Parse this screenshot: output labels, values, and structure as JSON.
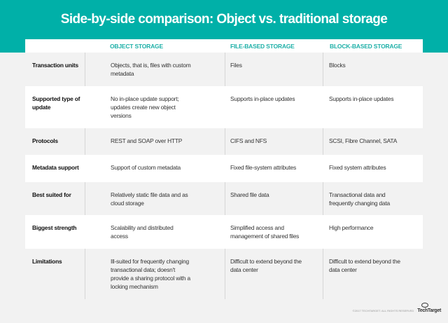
{
  "title": "Side-by-side comparison: Object vs. traditional storage",
  "columns": [
    "OBJECT STORAGE",
    "FILE-BASED STORAGE",
    "BLOCK-BASED STORAGE"
  ],
  "rows": [
    {
      "label": "Transaction units",
      "object": "Objects, that is, files with custom metadata",
      "file": "Files",
      "block": "Blocks"
    },
    {
      "label": "Supported type of update",
      "object": "No in-place update support; updates create new object versions",
      "file": "Supports in-place updates",
      "block": "Supports in-place updates"
    },
    {
      "label": "Protocols",
      "object": "REST and SOAP over HTTP",
      "file": "CIFS and NFS",
      "block": "SCSI, Fibre Channel, SATA"
    },
    {
      "label": "Metadata support",
      "object": "Support of custom metadata",
      "file": "Fixed file-system attributes",
      "block": "Fixed system attributes"
    },
    {
      "label": "Best suited for",
      "object": "Relatively static file data and as cloud storage",
      "file": "Shared file data",
      "block": "Transactional data and frequently changing data"
    },
    {
      "label": "Biggest strength",
      "object": "Scalability and distributed access",
      "file": "Simplified access and management of shared files",
      "block": "High performance"
    },
    {
      "label": "Limitations",
      "object": "Ill-suited for frequently changing transactional data; doesn't provide a sharing protocol with a locking mechanism",
      "file": "Difficult to extend beyond the data center",
      "block": "Difficult to extend beyond the data center"
    }
  ],
  "footer": {
    "copyright": "©2017 TECHTARGET. ALL RIGHTS RESERVED",
    "logo": "TechTarget"
  },
  "colors": {
    "banner": "#00b0a8",
    "header_text": "#1fb0a8"
  }
}
